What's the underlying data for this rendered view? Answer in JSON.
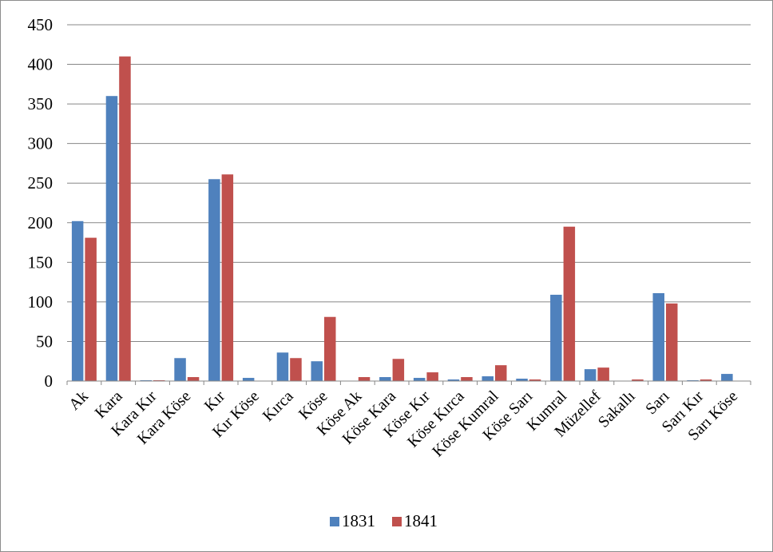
{
  "chart_data": {
    "type": "bar",
    "title": "",
    "xlabel": "",
    "ylabel": "",
    "ylim": [
      0,
      450
    ],
    "yticks": [
      0,
      50,
      100,
      150,
      200,
      250,
      300,
      350,
      400,
      450
    ],
    "grid": true,
    "legend_position": "bottom",
    "categories": [
      "Ak",
      "Kara",
      "Kara Kır",
      "Kara Köse",
      "Kır",
      "Kır Köse",
      "Kırca",
      "Köse",
      "Köse Ak",
      "Köse Kara",
      "Köse Kır",
      "Köse Kırca",
      "Köse Kumral",
      "Köse Sarı",
      "Kumral",
      "Müzellef",
      "Sakallı",
      "Sarı",
      "Sarı Kır",
      "Sarı Köse"
    ],
    "series": [
      {
        "name": "1831",
        "color": "#4f81bd",
        "values": [
          202,
          360,
          1,
          29,
          255,
          4,
          36,
          25,
          0,
          5,
          4,
          2,
          6,
          3,
          109,
          15,
          0,
          111,
          1,
          9
        ]
      },
      {
        "name": "1841",
        "color": "#c0504d",
        "values": [
          181,
          410,
          1,
          5,
          261,
          0,
          29,
          81,
          5,
          28,
          11,
          5,
          20,
          2,
          195,
          17,
          2,
          98,
          2,
          0
        ]
      }
    ]
  }
}
